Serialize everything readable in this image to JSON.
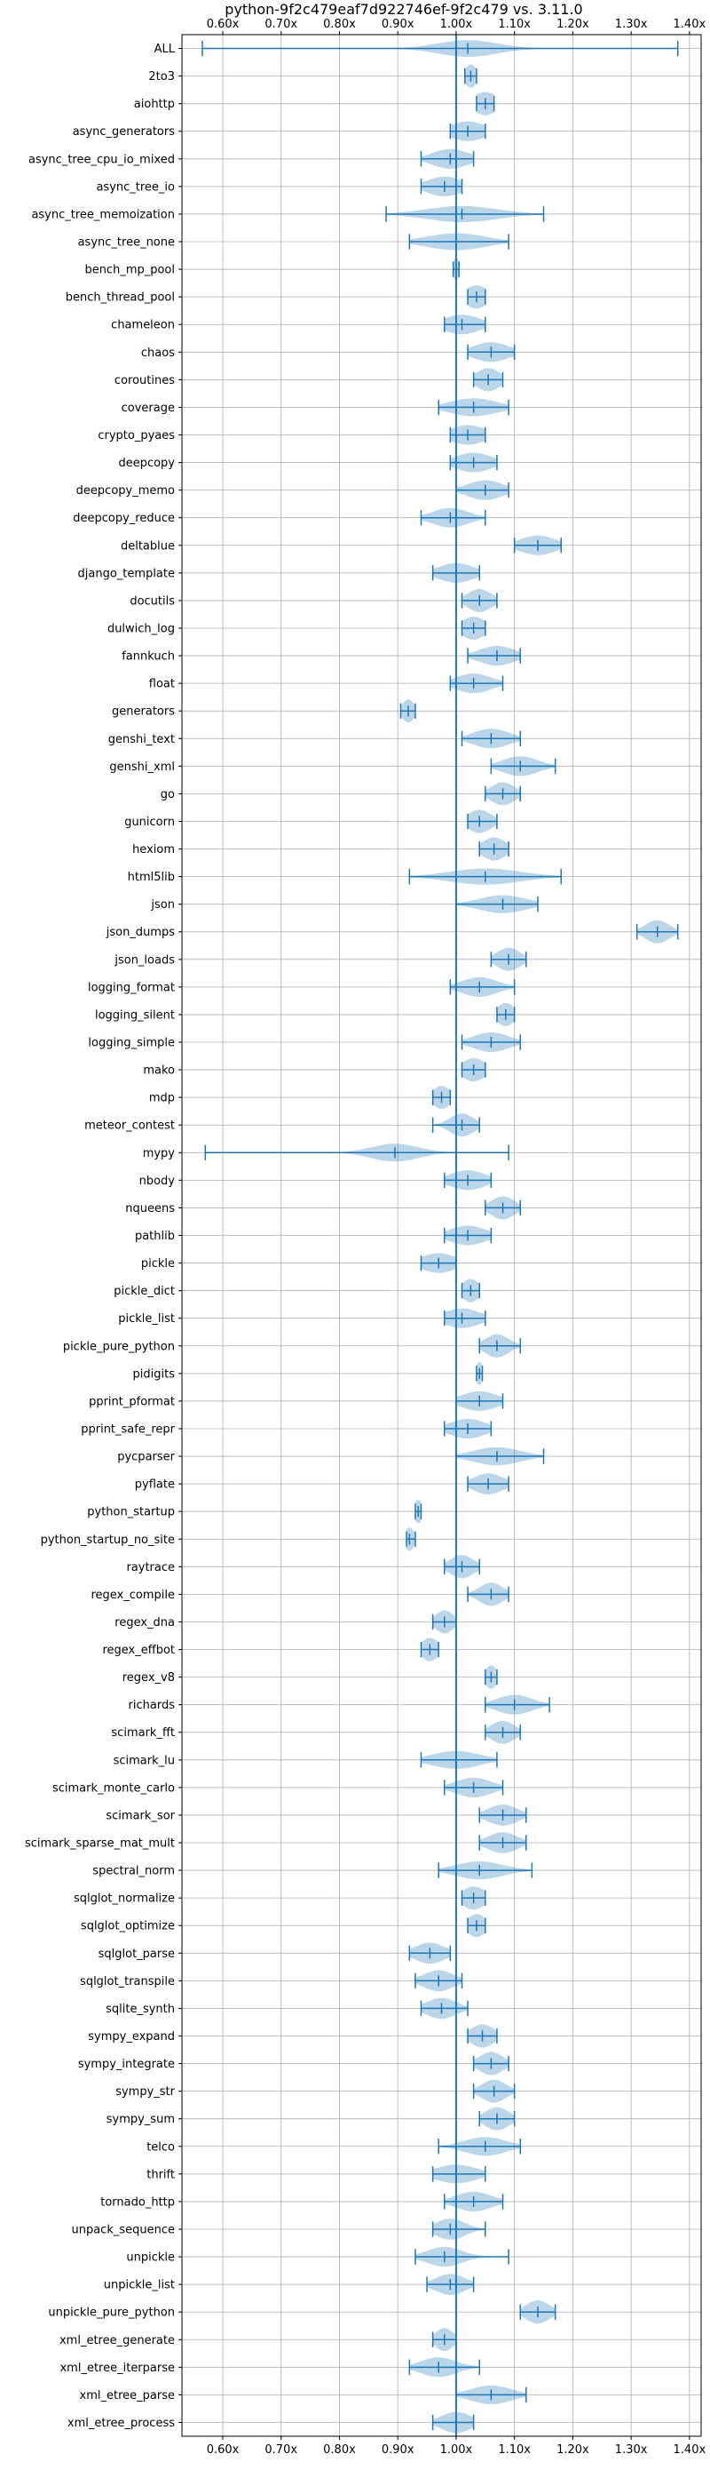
{
  "chart_data": {
    "type": "violin",
    "title": "python-9f2c479eaf7d922746ef-9f2c479 vs. 3.11.0",
    "orientation": "horizontal",
    "x_axis_position": "top-and-bottom",
    "xlim": [
      0.53,
      1.42
    ],
    "xticks": [
      0.6,
      0.7,
      0.8,
      0.9,
      1.0,
      1.1,
      1.2,
      1.3,
      1.4
    ],
    "xtick_labels": [
      "0.60x",
      "0.70x",
      "0.80x",
      "0.90x",
      "1.00x",
      "1.10x",
      "1.20x",
      "1.30x",
      "1.40x"
    ],
    "reference_line": 1.0,
    "grid": true,
    "colors": {
      "violin": "#1f77b4",
      "grid": "#b0b0b0"
    },
    "series": [
      {
        "name": "ALL",
        "min": 0.565,
        "max": 1.38,
        "median": 1.02,
        "width": 0.05
      },
      {
        "name": "2to3",
        "min": 1.015,
        "max": 1.035,
        "median": 1.025,
        "width": 0.01
      },
      {
        "name": "aiohttp",
        "min": 1.035,
        "max": 1.065,
        "median": 1.05,
        "width": 0.02
      },
      {
        "name": "async_generators",
        "min": 0.99,
        "max": 1.05,
        "median": 1.02,
        "width": 0.03
      },
      {
        "name": "async_tree_cpu_io_mixed",
        "min": 0.94,
        "max": 1.03,
        "median": 0.99,
        "width": 0.03
      },
      {
        "name": "async_tree_io",
        "min": 0.94,
        "max": 1.01,
        "median": 0.98,
        "width": 0.03
      },
      {
        "name": "async_tree_memoization",
        "min": 0.88,
        "max": 1.15,
        "median": 1.01,
        "width": 0.06
      },
      {
        "name": "async_tree_none",
        "min": 0.92,
        "max": 1.09,
        "median": 1.0,
        "width": 0.05
      },
      {
        "name": "bench_mp_pool",
        "min": 0.995,
        "max": 1.005,
        "median": 1.0,
        "width": 0.005
      },
      {
        "name": "bench_thread_pool",
        "min": 1.02,
        "max": 1.05,
        "median": 1.035,
        "width": 0.02
      },
      {
        "name": "chameleon",
        "min": 0.98,
        "max": 1.05,
        "median": 1.01,
        "width": 0.03
      },
      {
        "name": "chaos",
        "min": 1.02,
        "max": 1.1,
        "median": 1.06,
        "width": 0.03
      },
      {
        "name": "coroutines",
        "min": 1.03,
        "max": 1.08,
        "median": 1.055,
        "width": 0.02
      },
      {
        "name": "coverage",
        "min": 0.97,
        "max": 1.09,
        "median": 1.03,
        "width": 0.04
      },
      {
        "name": "crypto_pyaes",
        "min": 0.99,
        "max": 1.05,
        "median": 1.02,
        "width": 0.03
      },
      {
        "name": "deepcopy",
        "min": 0.99,
        "max": 1.07,
        "median": 1.03,
        "width": 0.03
      },
      {
        "name": "deepcopy_memo",
        "min": 1.0,
        "max": 1.09,
        "median": 1.05,
        "width": 0.03
      },
      {
        "name": "deepcopy_reduce",
        "min": 0.94,
        "max": 1.05,
        "median": 0.99,
        "width": 0.03
      },
      {
        "name": "deltablue",
        "min": 1.1,
        "max": 1.18,
        "median": 1.14,
        "width": 0.03
      },
      {
        "name": "django_template",
        "min": 0.96,
        "max": 1.04,
        "median": 1.0,
        "width": 0.03
      },
      {
        "name": "docutils",
        "min": 1.01,
        "max": 1.07,
        "median": 1.04,
        "width": 0.02
      },
      {
        "name": "dulwich_log",
        "min": 1.01,
        "max": 1.05,
        "median": 1.03,
        "width": 0.02
      },
      {
        "name": "fannkuch",
        "min": 1.02,
        "max": 1.11,
        "median": 1.07,
        "width": 0.03
      },
      {
        "name": "float",
        "min": 0.99,
        "max": 1.08,
        "median": 1.03,
        "width": 0.03
      },
      {
        "name": "generators",
        "min": 0.905,
        "max": 0.93,
        "median": 0.918,
        "width": 0.01
      },
      {
        "name": "genshi_text",
        "min": 1.01,
        "max": 1.11,
        "median": 1.06,
        "width": 0.03
      },
      {
        "name": "genshi_xml",
        "min": 1.06,
        "max": 1.17,
        "median": 1.11,
        "width": 0.03
      },
      {
        "name": "go",
        "min": 1.05,
        "max": 1.11,
        "median": 1.08,
        "width": 0.02
      },
      {
        "name": "gunicorn",
        "min": 1.02,
        "max": 1.07,
        "median": 1.04,
        "width": 0.02
      },
      {
        "name": "hexiom",
        "min": 1.04,
        "max": 1.09,
        "median": 1.065,
        "width": 0.02
      },
      {
        "name": "html5lib",
        "min": 0.92,
        "max": 1.18,
        "median": 1.05,
        "width": 0.06
      },
      {
        "name": "json",
        "min": 1.0,
        "max": 1.14,
        "median": 1.08,
        "width": 0.04
      },
      {
        "name": "json_dumps",
        "min": 1.31,
        "max": 1.38,
        "median": 1.345,
        "width": 0.02
      },
      {
        "name": "json_loads",
        "min": 1.06,
        "max": 1.12,
        "median": 1.09,
        "width": 0.02
      },
      {
        "name": "logging_format",
        "min": 0.99,
        "max": 1.1,
        "median": 1.04,
        "width": 0.03
      },
      {
        "name": "logging_silent",
        "min": 1.07,
        "max": 1.1,
        "median": 1.085,
        "width": 0.015
      },
      {
        "name": "logging_simple",
        "min": 1.01,
        "max": 1.11,
        "median": 1.06,
        "width": 0.03
      },
      {
        "name": "mako",
        "min": 1.01,
        "max": 1.05,
        "median": 1.03,
        "width": 0.02
      },
      {
        "name": "mdp",
        "min": 0.96,
        "max": 0.99,
        "median": 0.975,
        "width": 0.015
      },
      {
        "name": "meteor_contest",
        "min": 0.96,
        "max": 1.04,
        "median": 1.01,
        "width": 0.02
      },
      {
        "name": "mypy",
        "min": 0.57,
        "max": 1.09,
        "median": 0.895,
        "width": 0.04
      },
      {
        "name": "nbody",
        "min": 0.98,
        "max": 1.06,
        "median": 1.02,
        "width": 0.03
      },
      {
        "name": "nqueens",
        "min": 1.05,
        "max": 1.11,
        "median": 1.08,
        "width": 0.02
      },
      {
        "name": "pathlib",
        "min": 0.98,
        "max": 1.06,
        "median": 1.02,
        "width": 0.03
      },
      {
        "name": "pickle",
        "min": 0.94,
        "max": 1.0,
        "median": 0.97,
        "width": 0.03
      },
      {
        "name": "pickle_dict",
        "min": 1.01,
        "max": 1.04,
        "median": 1.025,
        "width": 0.015
      },
      {
        "name": "pickle_list",
        "min": 0.98,
        "max": 1.05,
        "median": 1.01,
        "width": 0.03
      },
      {
        "name": "pickle_pure_python",
        "min": 1.04,
        "max": 1.11,
        "median": 1.07,
        "width": 0.02
      },
      {
        "name": "pidigits",
        "min": 1.035,
        "max": 1.045,
        "median": 1.04,
        "width": 0.006
      },
      {
        "name": "pprint_pformat",
        "min": 1.0,
        "max": 1.08,
        "median": 1.04,
        "width": 0.03
      },
      {
        "name": "pprint_safe_repr",
        "min": 0.98,
        "max": 1.06,
        "median": 1.02,
        "width": 0.03
      },
      {
        "name": "pycparser",
        "min": 1.0,
        "max": 1.15,
        "median": 1.07,
        "width": 0.04
      },
      {
        "name": "pyflate",
        "min": 1.02,
        "max": 1.09,
        "median": 1.055,
        "width": 0.025
      },
      {
        "name": "python_startup",
        "min": 0.93,
        "max": 0.94,
        "median": 0.935,
        "width": 0.008
      },
      {
        "name": "python_startup_no_site",
        "min": 0.915,
        "max": 0.93,
        "median": 0.92,
        "width": 0.008
      },
      {
        "name": "raytrace",
        "min": 0.98,
        "max": 1.04,
        "median": 1.01,
        "width": 0.02
      },
      {
        "name": "regex_compile",
        "min": 1.02,
        "max": 1.09,
        "median": 1.06,
        "width": 0.02
      },
      {
        "name": "regex_dna",
        "min": 0.96,
        "max": 1.0,
        "median": 0.98,
        "width": 0.015
      },
      {
        "name": "regex_effbot",
        "min": 0.94,
        "max": 0.97,
        "median": 0.955,
        "width": 0.015
      },
      {
        "name": "regex_v8",
        "min": 1.05,
        "max": 1.07,
        "median": 1.06,
        "width": 0.01
      },
      {
        "name": "richards",
        "min": 1.05,
        "max": 1.16,
        "median": 1.1,
        "width": 0.03
      },
      {
        "name": "scimark_fft",
        "min": 1.05,
        "max": 1.11,
        "median": 1.08,
        "width": 0.02
      },
      {
        "name": "scimark_lu",
        "min": 0.94,
        "max": 1.07,
        "median": 1.0,
        "width": 0.04
      },
      {
        "name": "scimark_monte_carlo",
        "min": 0.98,
        "max": 1.08,
        "median": 1.03,
        "width": 0.03
      },
      {
        "name": "scimark_sor",
        "min": 1.04,
        "max": 1.12,
        "median": 1.08,
        "width": 0.025
      },
      {
        "name": "scimark_sparse_mat_mult",
        "min": 1.04,
        "max": 1.12,
        "median": 1.08,
        "width": 0.025
      },
      {
        "name": "spectral_norm",
        "min": 0.97,
        "max": 1.13,
        "median": 1.04,
        "width": 0.04
      },
      {
        "name": "sqlglot_normalize",
        "min": 1.01,
        "max": 1.05,
        "median": 1.03,
        "width": 0.02
      },
      {
        "name": "sqlglot_optimize",
        "min": 1.02,
        "max": 1.05,
        "median": 1.035,
        "width": 0.015
      },
      {
        "name": "sqlglot_parse",
        "min": 0.92,
        "max": 0.99,
        "median": 0.955,
        "width": 0.025
      },
      {
        "name": "sqlglot_transpile",
        "min": 0.93,
        "max": 1.01,
        "median": 0.97,
        "width": 0.025
      },
      {
        "name": "sqlite_synth",
        "min": 0.94,
        "max": 1.02,
        "median": 0.975,
        "width": 0.025
      },
      {
        "name": "sympy_expand",
        "min": 1.02,
        "max": 1.07,
        "median": 1.045,
        "width": 0.02
      },
      {
        "name": "sympy_integrate",
        "min": 1.03,
        "max": 1.09,
        "median": 1.06,
        "width": 0.02
      },
      {
        "name": "sympy_str",
        "min": 1.03,
        "max": 1.1,
        "median": 1.065,
        "width": 0.02
      },
      {
        "name": "sympy_sum",
        "min": 1.04,
        "max": 1.1,
        "median": 1.07,
        "width": 0.02
      },
      {
        "name": "telco",
        "min": 0.97,
        "max": 1.11,
        "median": 1.05,
        "width": 0.035
      },
      {
        "name": "thrift",
        "min": 0.96,
        "max": 1.05,
        "median": 1.0,
        "width": 0.035
      },
      {
        "name": "tornado_http",
        "min": 0.98,
        "max": 1.08,
        "median": 1.03,
        "width": 0.03
      },
      {
        "name": "unpack_sequence",
        "min": 0.96,
        "max": 1.05,
        "median": 0.99,
        "width": 0.025
      },
      {
        "name": "unpickle",
        "min": 0.93,
        "max": 1.09,
        "median": 0.98,
        "width": 0.03
      },
      {
        "name": "unpickle_list",
        "min": 0.95,
        "max": 1.03,
        "median": 0.99,
        "width": 0.025
      },
      {
        "name": "unpickle_pure_python",
        "min": 1.11,
        "max": 1.17,
        "median": 1.14,
        "width": 0.02
      },
      {
        "name": "xml_etree_generate",
        "min": 0.96,
        "max": 1.0,
        "median": 0.98,
        "width": 0.015
      },
      {
        "name": "xml_etree_iterparse",
        "min": 0.92,
        "max": 1.04,
        "median": 0.97,
        "width": 0.03
      },
      {
        "name": "xml_etree_parse",
        "min": 1.0,
        "max": 1.12,
        "median": 1.06,
        "width": 0.035
      },
      {
        "name": "xml_etree_process",
        "min": 0.96,
        "max": 1.03,
        "median": 1.0,
        "width": 0.025
      }
    ]
  }
}
